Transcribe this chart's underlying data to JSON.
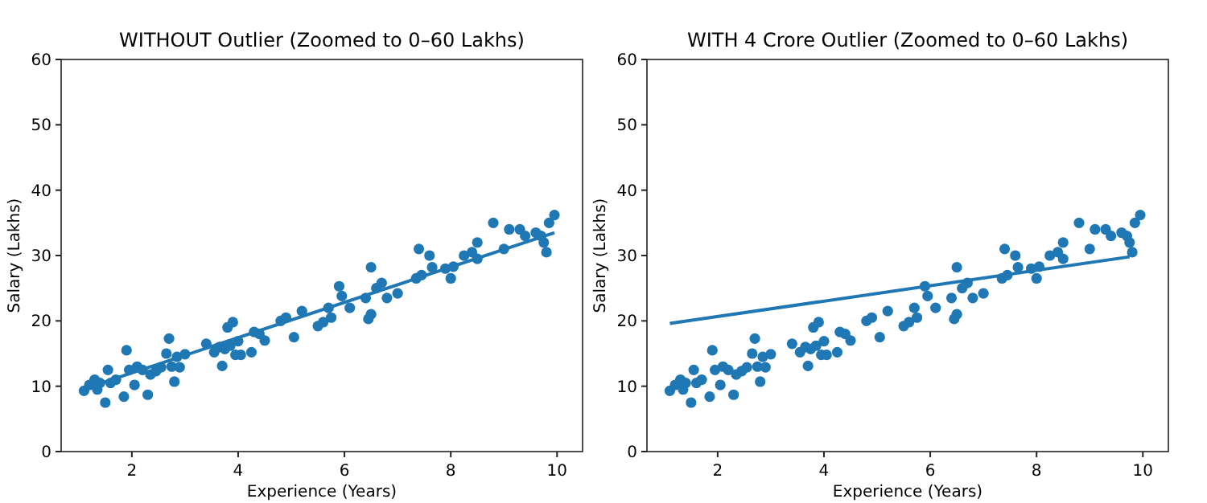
{
  "chart_data": [
    {
      "type": "scatter",
      "title": "WITHOUT Outlier (Zoomed to 0–60 Lakhs)",
      "xlabel": "Experience (Years)",
      "ylabel": "Salary (Lakhs)",
      "xlim": [
        0.67,
        10.48
      ],
      "ylim": [
        0,
        60
      ],
      "xticks": [
        2,
        4,
        6,
        8,
        10
      ],
      "yticks": [
        0,
        10,
        20,
        30,
        40,
        50,
        60
      ],
      "grid": false,
      "series": [
        {
          "marker": "circle",
          "color": "#1f77b4",
          "x": [
            1.1,
            1.2,
            1.3,
            1.35,
            1.4,
            1.5,
            1.55,
            1.6,
            1.7,
            1.85,
            1.9,
            1.95,
            2.05,
            2.1,
            2.2,
            2.3,
            2.35,
            2.45,
            2.55,
            2.65,
            2.7,
            2.75,
            2.8,
            2.85,
            2.9,
            3.0,
            3.4,
            3.55,
            3.65,
            3.7,
            3.75,
            3.8,
            3.85,
            3.9,
            3.95,
            4.0,
            4.05,
            4.25,
            4.3,
            4.4,
            4.5,
            4.8,
            4.9,
            5.05,
            5.2,
            5.5,
            5.6,
            5.7,
            5.75,
            5.9,
            5.95,
            6.1,
            6.4,
            6.45,
            6.5,
            6.5,
            6.6,
            6.7,
            6.8,
            7.0,
            7.35,
            7.4,
            7.45,
            7.6,
            7.65,
            7.9,
            8.0,
            8.05,
            8.25,
            8.4,
            8.5,
            8.5,
            8.8,
            9.0,
            9.1,
            9.3,
            9.4,
            9.6,
            9.7,
            9.75,
            9.8,
            9.85,
            9.95
          ],
          "values": [
            9.3,
            10.2,
            11,
            9.5,
            10.5,
            7.5,
            12.5,
            10.5,
            11,
            8.4,
            15.5,
            12.5,
            10.2,
            13,
            12.5,
            8.7,
            11.8,
            12.3,
            12.9,
            15,
            17.3,
            13,
            10.7,
            14.5,
            12.9,
            14.9,
            16.5,
            15.2,
            16,
            13.1,
            15.7,
            19,
            16.2,
            19.8,
            14.8,
            16.9,
            14.8,
            15.2,
            18.3,
            18,
            17,
            20,
            20.5,
            17.5,
            21.5,
            19.2,
            19.8,
            22,
            20.5,
            25.3,
            23.8,
            22,
            23.5,
            20.3,
            21,
            28.2,
            25,
            25.8,
            23.5,
            24.2,
            26.5,
            31,
            27,
            30,
            28.2,
            28,
            26.5,
            28.3,
            30,
            30.5,
            32,
            29.5,
            35,
            31,
            34,
            34,
            33,
            33.5,
            33,
            32,
            30.5,
            35,
            36.2
          ]
        },
        {
          "type": "line",
          "color": "#1f77b4",
          "x": [
            1.1,
            9.95
          ],
          "values": [
            9.6,
            33.5
          ]
        }
      ]
    },
    {
      "type": "scatter",
      "title": "WITH 4 Crore Outlier (Zoomed to 0–60 Lakhs)",
      "xlabel": "Experience (Years)",
      "ylabel": "Salary (Lakhs)",
      "xlim": [
        0.67,
        10.48
      ],
      "ylim": [
        0,
        60
      ],
      "xticks": [
        2,
        4,
        6,
        8,
        10
      ],
      "yticks": [
        0,
        10,
        20,
        30,
        40,
        50,
        60
      ],
      "grid": false,
      "series": [
        {
          "marker": "circle",
          "color": "#1f77b4",
          "x": [
            1.1,
            1.2,
            1.3,
            1.35,
            1.4,
            1.5,
            1.55,
            1.6,
            1.7,
            1.85,
            1.9,
            1.95,
            2.05,
            2.1,
            2.2,
            2.3,
            2.35,
            2.45,
            2.55,
            2.65,
            2.7,
            2.75,
            2.8,
            2.85,
            2.9,
            3.0,
            3.4,
            3.55,
            3.65,
            3.7,
            3.75,
            3.8,
            3.85,
            3.9,
            3.95,
            4.0,
            4.05,
            4.25,
            4.3,
            4.4,
            4.5,
            4.8,
            4.9,
            5.05,
            5.2,
            5.5,
            5.6,
            5.7,
            5.75,
            5.9,
            5.95,
            6.1,
            6.4,
            6.45,
            6.5,
            6.5,
            6.6,
            6.7,
            6.8,
            7.0,
            7.35,
            7.4,
            7.45,
            7.6,
            7.65,
            7.9,
            8.0,
            8.05,
            8.25,
            8.4,
            8.5,
            8.5,
            8.8,
            9.0,
            9.1,
            9.3,
            9.4,
            9.6,
            9.7,
            9.75,
            9.8,
            9.85,
            9.95
          ],
          "values": [
            9.3,
            10.2,
            11,
            9.5,
            10.5,
            7.5,
            12.5,
            10.5,
            11,
            8.4,
            15.5,
            12.5,
            10.2,
            13,
            12.5,
            8.7,
            11.8,
            12.3,
            12.9,
            15,
            17.3,
            13,
            10.7,
            14.5,
            12.9,
            14.9,
            16.5,
            15.2,
            16,
            13.1,
            15.7,
            19,
            16.2,
            19.8,
            14.8,
            16.9,
            14.8,
            15.2,
            18.3,
            18,
            17,
            20,
            20.5,
            17.5,
            21.5,
            19.2,
            19.8,
            22,
            20.5,
            25.3,
            23.8,
            22,
            23.5,
            20.3,
            21,
            28.2,
            25,
            25.8,
            23.5,
            24.2,
            26.5,
            31,
            27,
            30,
            28.2,
            28,
            26.5,
            28.3,
            30,
            30.5,
            32,
            29.5,
            35,
            31,
            34,
            34,
            33,
            33.5,
            33,
            32,
            30.5,
            35,
            36.2
          ]
        },
        {
          "type": "line",
          "color": "#1f77b4",
          "x": [
            1.1,
            9.75
          ],
          "values": [
            19.6,
            29.8
          ]
        }
      ]
    }
  ]
}
